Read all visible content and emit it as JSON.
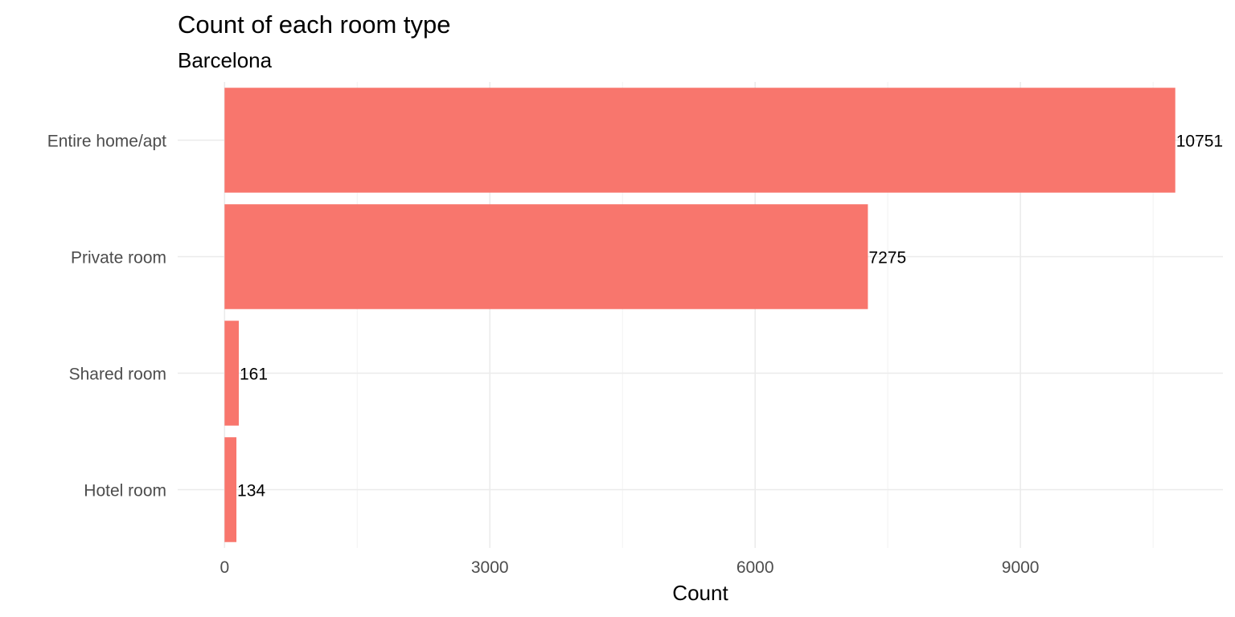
{
  "chart_data": {
    "type": "bar",
    "orientation": "horizontal",
    "title": "Count of each room type",
    "subtitle": "Barcelona",
    "xlabel": "Count",
    "ylabel": "",
    "categories": [
      "Entire home/apt",
      "Private room",
      "Shared room",
      "Hotel room"
    ],
    "values": [
      10751,
      7275,
      161,
      134
    ],
    "data_labels": [
      "10751",
      "7275",
      "161",
      "134"
    ],
    "x_ticks": [
      0,
      3000,
      6000,
      9000
    ],
    "x_tick_labels": [
      "0",
      "3000",
      "6000",
      "9000"
    ],
    "xlim": [
      -530,
      11290
    ],
    "bar_color": "#F8766D",
    "grid": true,
    "legend": "none"
  }
}
